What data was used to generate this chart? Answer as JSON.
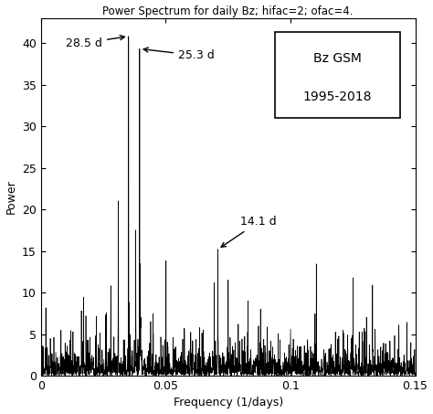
{
  "title": "Power Spectrum for daily Bz; hifac=2; ofac=4.",
  "xlabel": "Frequency (1/days)",
  "ylabel": "Power",
  "xlim": [
    0,
    0.15
  ],
  "ylim": [
    0,
    43
  ],
  "yticks": [
    0,
    5,
    10,
    15,
    20,
    25,
    30,
    35,
    40
  ],
  "xticks": [
    0,
    0.05,
    0.1,
    0.15
  ],
  "peak1_freq": 0.03509,
  "peak1_power": 40.8,
  "peak1_label": "28.5 d",
  "peak2_freq": 0.03953,
  "peak2_power": 39.3,
  "peak2_label": "25.3 d",
  "peak3_freq": 0.07092,
  "peak3_power": 15.2,
  "peak3_label": "14.1 d",
  "legend_text1": "Bz GSM",
  "legend_text2": "1995-2018",
  "background_color": "#ffffff",
  "line_color": "#000000",
  "seed": 42
}
